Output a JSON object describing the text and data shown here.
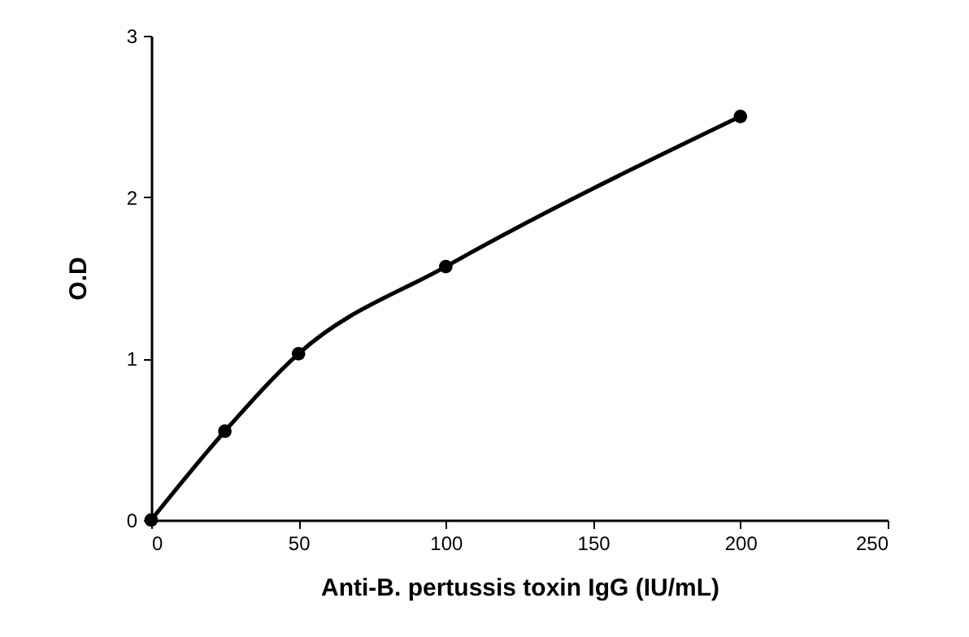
{
  "chart_data": {
    "type": "line",
    "xlabel": "Anti-B. pertussis toxin IgG (IU/mL)",
    "ylabel": "O.D",
    "x": [
      0,
      25,
      50,
      100,
      200
    ],
    "series": [
      {
        "color": "#000000",
        "values": [
          0,
          0.55,
          1.03,
          1.57,
          2.5
        ]
      }
    ],
    "xlim": [
      0,
      250
    ],
    "xticks": [
      0,
      50,
      100,
      150,
      200,
      250
    ],
    "ylim": [
      0,
      3
    ],
    "yticks": [
      0,
      1,
      2,
      3
    ],
    "grid": false,
    "marker": "circle",
    "line_style": "solid"
  }
}
